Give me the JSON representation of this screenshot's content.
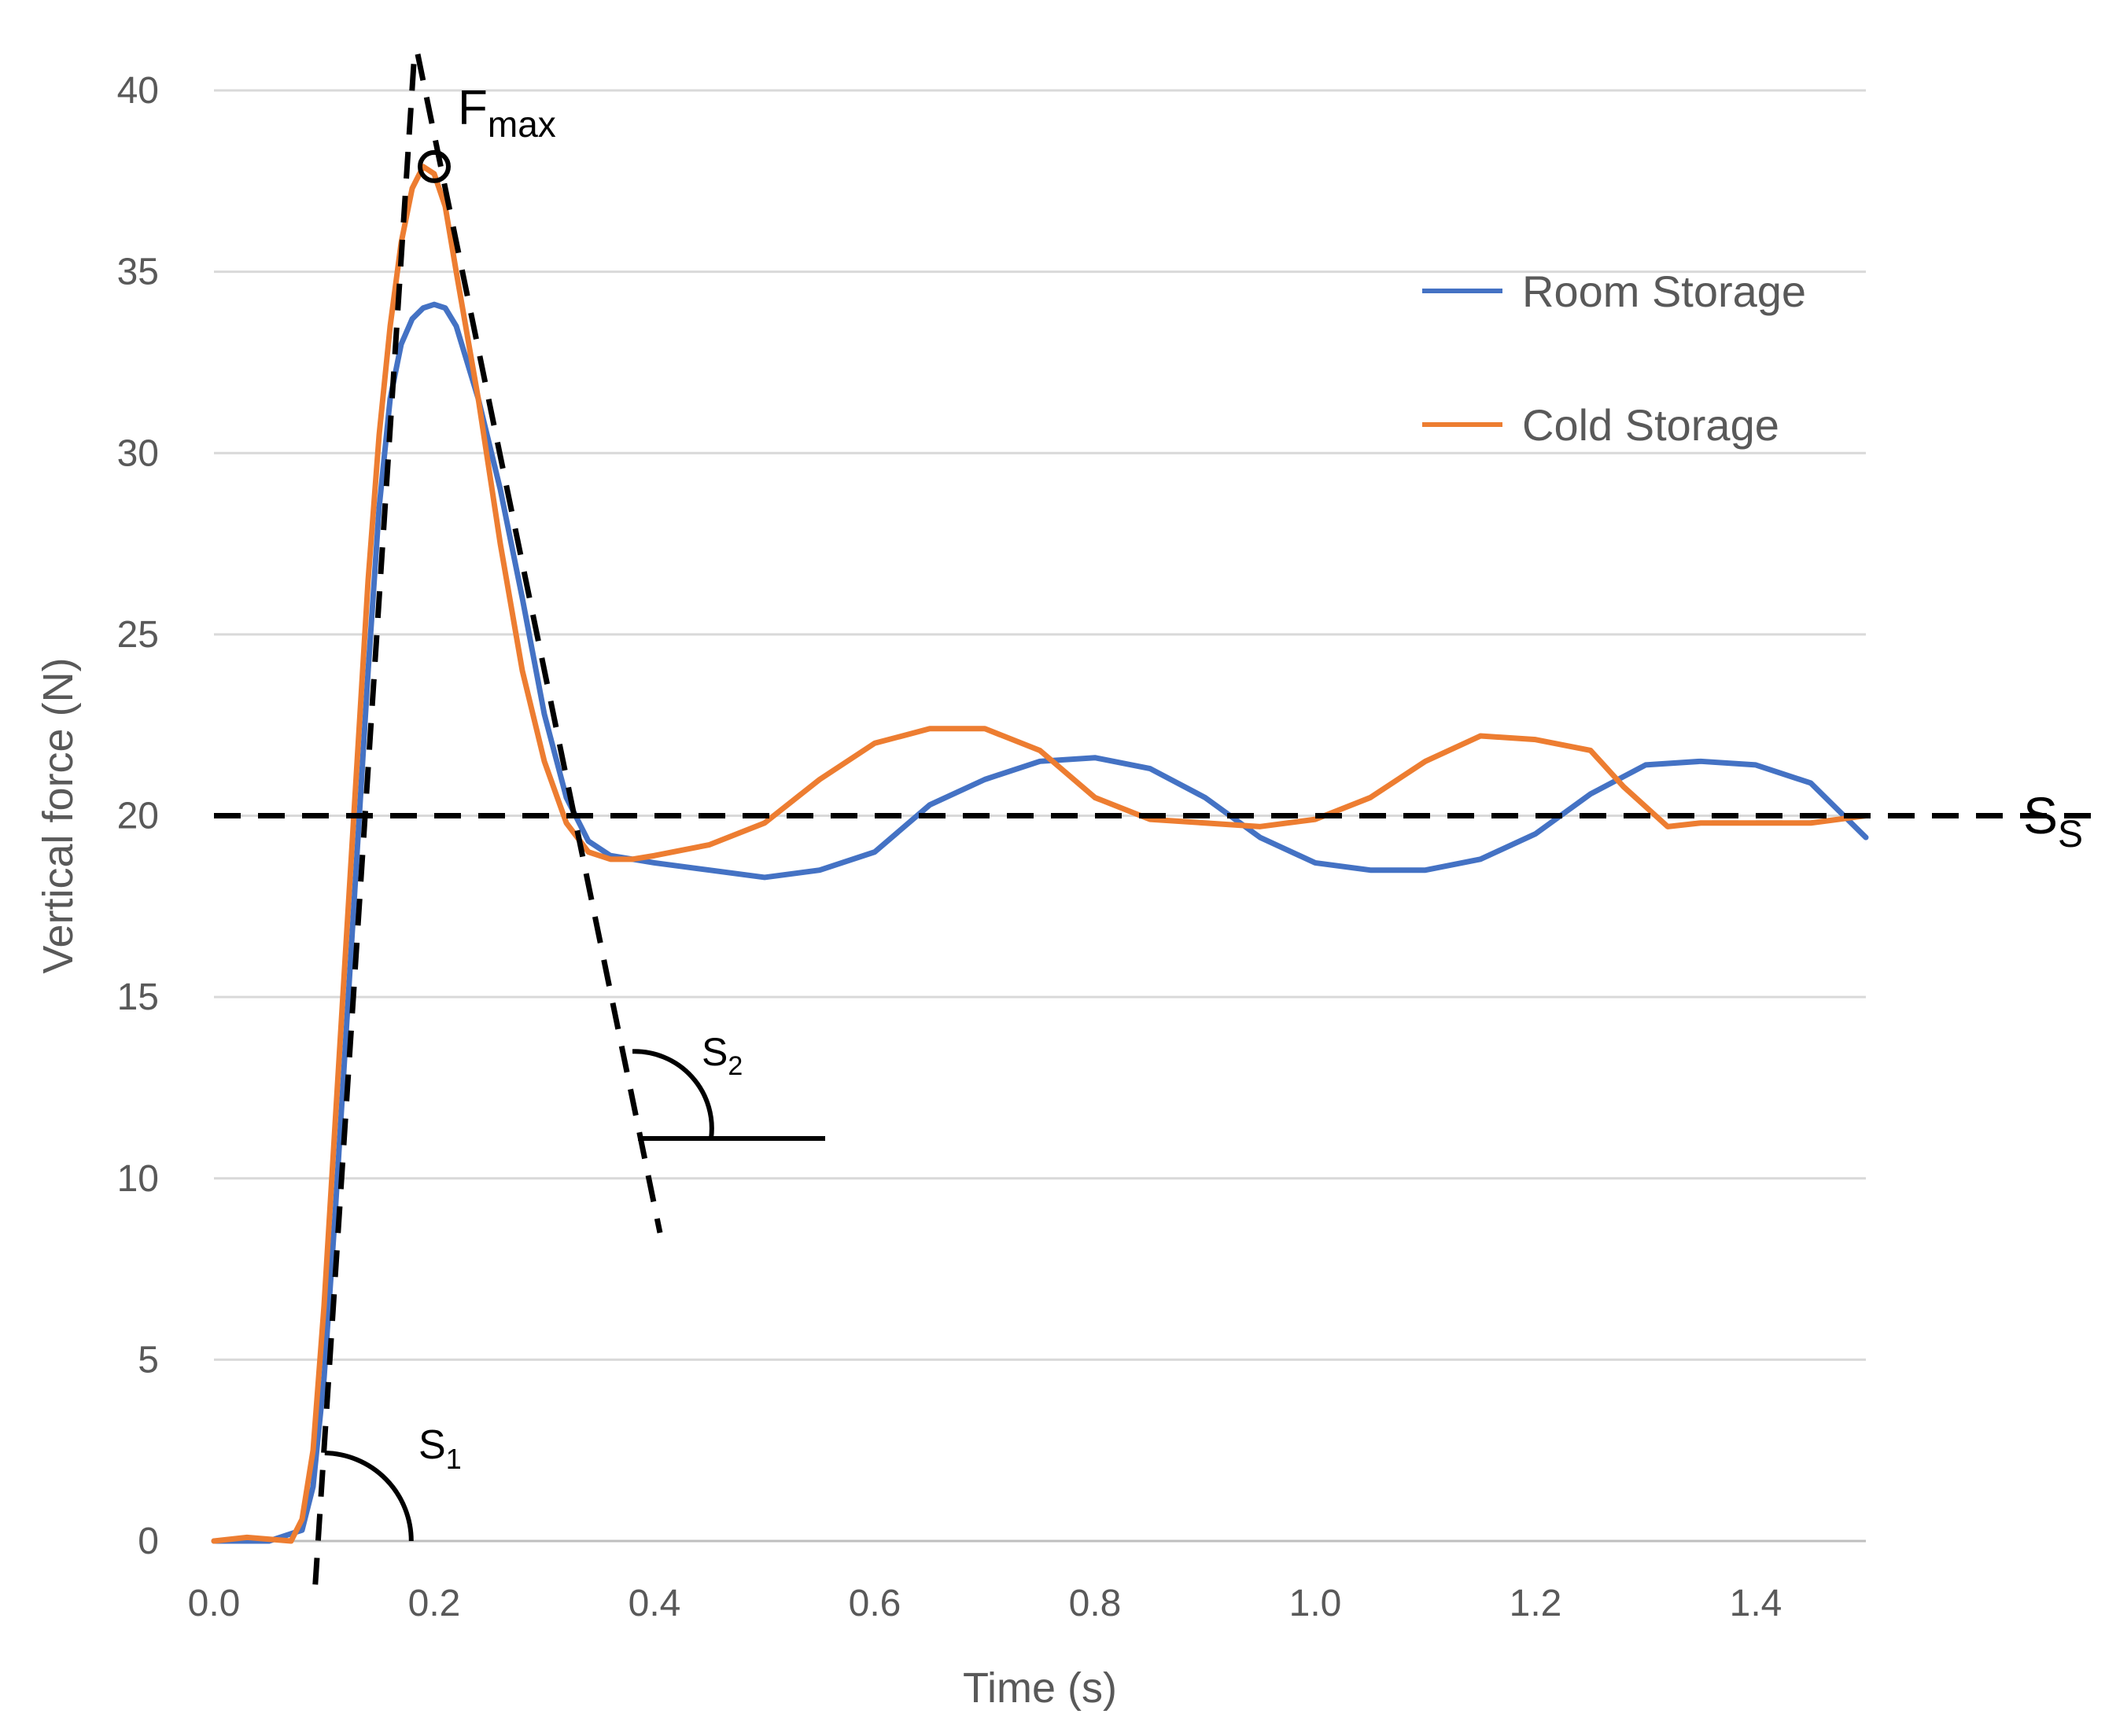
{
  "chart_data": {
    "type": "line",
    "xlabel": "Time (s)",
    "ylabel": "Vertical force  (N)",
    "xlim": [
      0.0,
      1.5
    ],
    "ylim": [
      0,
      40
    ],
    "xticks": [
      "0.0",
      "0.2",
      "0.4",
      "0.6",
      "0.8",
      "1.0",
      "1.2",
      "1.4"
    ],
    "xtick_values": [
      0.0,
      0.2,
      0.4,
      0.6,
      0.8,
      1.0,
      1.2,
      1.4
    ],
    "yticks": [
      "0",
      "5",
      "10",
      "15",
      "20",
      "25",
      "30",
      "35",
      "40"
    ],
    "ytick_values": [
      0,
      5,
      10,
      15,
      20,
      25,
      30,
      35,
      40
    ],
    "grid": "horizontal",
    "legend_position": "top-right",
    "series": [
      {
        "name": "Room Storage",
        "color": "#4472c4",
        "x": [
          0.0,
          0.05,
          0.08,
          0.09,
          0.1,
          0.11,
          0.12,
          0.13,
          0.14,
          0.15,
          0.16,
          0.17,
          0.18,
          0.19,
          0.2,
          0.21,
          0.22,
          0.24,
          0.26,
          0.28,
          0.3,
          0.32,
          0.34,
          0.36,
          0.38,
          0.4,
          0.45,
          0.5,
          0.55,
          0.6,
          0.65,
          0.7,
          0.75,
          0.8,
          0.85,
          0.9,
          0.95,
          1.0,
          1.05,
          1.1,
          1.15,
          1.2,
          1.25,
          1.3,
          1.35,
          1.4,
          1.45,
          1.5
        ],
        "y": [
          0.0,
          0.0,
          0.3,
          1.5,
          4.5,
          9.0,
          14.0,
          19.0,
          24.0,
          28.5,
          31.5,
          33.0,
          33.7,
          34.0,
          34.1,
          34.0,
          33.5,
          31.5,
          29.0,
          26.0,
          22.8,
          20.5,
          19.3,
          18.9,
          18.8,
          18.7,
          18.5,
          18.3,
          18.5,
          19.0,
          20.3,
          21.0,
          21.5,
          21.6,
          21.3,
          20.5,
          19.4,
          18.7,
          18.5,
          18.5,
          18.8,
          19.5,
          20.6,
          21.4,
          21.5,
          21.4,
          20.9,
          19.4
        ]
      },
      {
        "name": "Cold Storage",
        "color": "#ed7d31",
        "x": [
          0.0,
          0.03,
          0.07,
          0.08,
          0.09,
          0.1,
          0.11,
          0.12,
          0.13,
          0.14,
          0.15,
          0.16,
          0.17,
          0.18,
          0.19,
          0.2,
          0.21,
          0.22,
          0.24,
          0.26,
          0.28,
          0.3,
          0.32,
          0.34,
          0.36,
          0.38,
          0.4,
          0.45,
          0.5,
          0.55,
          0.6,
          0.65,
          0.7,
          0.75,
          0.8,
          0.85,
          0.9,
          0.95,
          1.0,
          1.05,
          1.1,
          1.15,
          1.2,
          1.25,
          1.28,
          1.32,
          1.35,
          1.4,
          1.45,
          1.5
        ],
        "y": [
          0.0,
          0.1,
          0.0,
          0.6,
          2.5,
          6.5,
          11.5,
          16.5,
          21.5,
          26.5,
          30.5,
          33.5,
          35.8,
          37.3,
          37.9,
          37.7,
          36.8,
          35.0,
          31.5,
          27.5,
          24.0,
          21.5,
          19.8,
          19.0,
          18.8,
          18.8,
          18.9,
          19.2,
          19.8,
          21.0,
          22.0,
          22.4,
          22.4,
          21.8,
          20.5,
          19.9,
          19.8,
          19.7,
          19.9,
          20.5,
          21.5,
          22.2,
          22.1,
          21.8,
          20.8,
          19.7,
          19.8,
          19.8,
          19.8,
          20.0
        ]
      }
    ],
    "annotations": {
      "fmax_main": "F",
      "fmax_sub": "max",
      "fmax_point": {
        "x": 0.2,
        "y": 37.9
      },
      "steady_level": 20,
      "ss_main": "S",
      "ss_sub": "S",
      "s1_main": "S",
      "s1_sub": "1",
      "s2_main": "S",
      "s2_sub": "2",
      "tangent_rise": {
        "x0": 0.092,
        "y0": -1.2,
        "x1": 0.182,
        "y1": 41.0
      },
      "tangent_fall": {
        "x0": 0.185,
        "y0": 41.0,
        "x1": 0.405,
        "y1": 8.5
      },
      "s2_baseline": {
        "x0": 0.385,
        "x1": 0.555,
        "y": 11.1
      }
    }
  }
}
